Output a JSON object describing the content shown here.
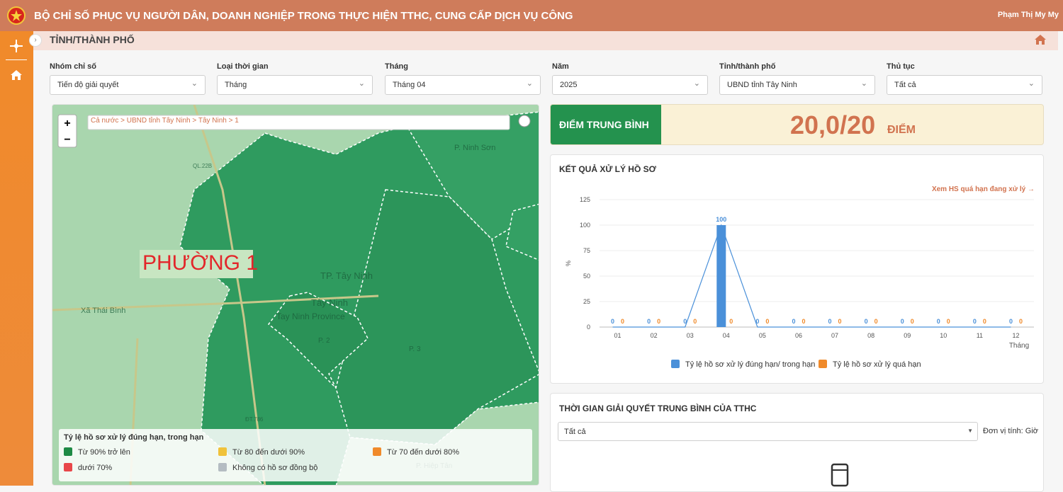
{
  "header": {
    "title": "BỘ CHỈ SỐ PHỤC VỤ NGƯỜI DÂN, DOANH NGHIỆP TRONG THỰC HIỆN TTHC, CUNG CẤP DỊCH VỤ CÔNG",
    "user": "Phạm Thị My My"
  },
  "page_title": "TỈNH/THÀNH PHỐ",
  "filters": [
    {
      "label": "Nhóm chỉ số",
      "value": "Tiến độ giải quyết"
    },
    {
      "label": "Loại thời gian",
      "value": "Tháng"
    },
    {
      "label": "Tháng",
      "value": "Tháng 04"
    },
    {
      "label": "Năm",
      "value": "2025"
    },
    {
      "label": "Tỉnh/thành phố",
      "value": "UBND tỉnh Tây Ninh"
    },
    {
      "label": "Thủ tục",
      "value": "Tất cả"
    }
  ],
  "map": {
    "breadcrumb": "Cả nước > UBND tỉnh Tây Ninh > Tây Ninh > 1",
    "highlight": "PHƯỜNG 1",
    "places": [
      "P. Ninh Sơn",
      "TP. Tây Ninh",
      "Tây Ninh",
      "Tay Ninh Province",
      "Xã Thái Bình",
      "P. 2",
      "P. 3",
      "P. Hiệp Tân",
      "QL.22B",
      "ĐT.786"
    ],
    "legend_title": "Tỷ lệ hồ sơ xử lý đúng hạn, trong hạn",
    "legend": [
      {
        "label": "Từ 90% trở lên",
        "color": "#1e8a45"
      },
      {
        "label": "Từ 80 đến dưới 90%",
        "color": "#f0c23b"
      },
      {
        "label": "Từ 70 đến dưới 80%",
        "color": "#f08a2a"
      },
      {
        "label": "dưới 70%",
        "color": "#e8474a"
      },
      {
        "label": "Không có hồ sơ đồng bộ",
        "color": "#b4bcc2"
      }
    ]
  },
  "score": {
    "label": "ĐIỂM TRUNG BÌNH",
    "value": "20,0/20",
    "unit": "ĐIỂM"
  },
  "chart_data": {
    "type": "bar",
    "title": "KẾT QUẢ XỬ LÝ HỒ SƠ",
    "link": "Xem HS quá hạn đang xử lý →",
    "y_label": "%",
    "x_label": "Tháng",
    "categories": [
      "01",
      "02",
      "03",
      "04",
      "05",
      "06",
      "07",
      "08",
      "09",
      "10",
      "11",
      "12"
    ],
    "series": [
      {
        "name": "Tỷ lệ hồ sơ xử lý đúng hạn/ trong hạn",
        "color": "#4a90d9",
        "values": [
          0,
          0,
          0,
          100,
          0,
          0,
          0,
          0,
          0,
          0,
          0,
          0
        ]
      },
      {
        "name": "Tỷ lệ hồ sơ xử lý quá hạn",
        "color": "#f08a2a",
        "values": [
          0,
          0,
          0,
          0,
          0,
          0,
          0,
          0,
          0,
          0,
          0,
          0
        ]
      }
    ],
    "ylim": [
      0,
      125
    ],
    "yticks": [
      0,
      25,
      50,
      75,
      100,
      125
    ],
    "grid": true
  },
  "time_card": {
    "title": "THỜI GIAN GIẢI QUYẾT TRUNG BÌNH CỦA TTHC",
    "select": "Tất cả",
    "unit": "Đơn vị tính: Giờ"
  }
}
